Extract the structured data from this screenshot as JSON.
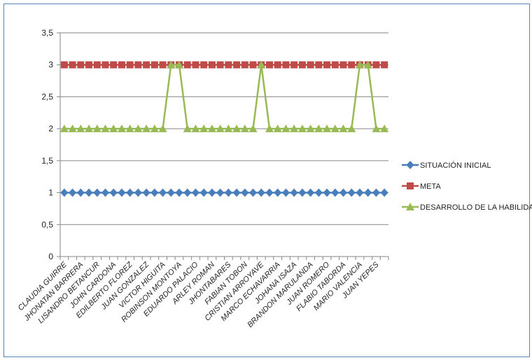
{
  "chart_data": {
    "type": "line",
    "title": "",
    "xlabel": "",
    "ylabel": "",
    "ylim": [
      0,
      3.5
    ],
    "ytick_step": 0.5,
    "ytick_labels": [
      "0",
      "0,5",
      "1",
      "1,5",
      "2",
      "2,5",
      "3",
      "3,5"
    ],
    "grid": true,
    "legend_position": "right",
    "categories": [
      "CLAUDIA GUIRRE",
      "",
      "JHONATAN BARRERA",
      "",
      "LISANDRO BETANCUR",
      "",
      "JOHN  CARDONA",
      "",
      "EDILBERTO FLOREZ",
      "",
      "JUAN  GONZALEZ",
      "",
      "VICTOR  HIGUITA",
      "",
      "ROBINSON MONTOYA",
      "",
      "EDUARDO PALACIO",
      "",
      "ARLEY ROMAN",
      "",
      "JHONTABARES",
      "",
      "FABIAN TOBON",
      "",
      "CRISTIAN ARROYAVE",
      "",
      "MARCO ECHAVARRIA",
      "",
      "JOHANA  ISAZA",
      "",
      "BRANDON MARULANDA",
      "",
      "JUAN ROMERO",
      "",
      "FLABIO  TABORDA",
      "",
      "MARIO VALENCIA",
      "",
      "JUAN  YEPES",
      ""
    ],
    "series": [
      {
        "name": "SITUACIÓN INICIAL",
        "color": "#4a7ebb",
        "marker": "diamond",
        "values": [
          1,
          1,
          1,
          1,
          1,
          1,
          1,
          1,
          1,
          1,
          1,
          1,
          1,
          1,
          1,
          1,
          1,
          1,
          1,
          1,
          1,
          1,
          1,
          1,
          1,
          1,
          1,
          1,
          1,
          1,
          1,
          1,
          1,
          1,
          1,
          1,
          1,
          1,
          1,
          1
        ]
      },
      {
        "name": "META",
        "color": "#be4b48",
        "marker": "square",
        "values": [
          3,
          3,
          3,
          3,
          3,
          3,
          3,
          3,
          3,
          3,
          3,
          3,
          3,
          3,
          3,
          3,
          3,
          3,
          3,
          3,
          3,
          3,
          3,
          3,
          3,
          3,
          3,
          3,
          3,
          3,
          3,
          3,
          3,
          3,
          3,
          3,
          3,
          3,
          3,
          3
        ]
      },
      {
        "name": "DESARROLLO DE LA HABILIDAD",
        "color": "#98b954",
        "marker": "triangle",
        "values": [
          2,
          2,
          2,
          2,
          2,
          2,
          2,
          2,
          2,
          2,
          2,
          2,
          2,
          3,
          3,
          2,
          2,
          2,
          2,
          2,
          2,
          2,
          2,
          2,
          3,
          2,
          2,
          2,
          2,
          2,
          2,
          2,
          2,
          2,
          2,
          2,
          3,
          3,
          2,
          2
        ]
      }
    ]
  }
}
